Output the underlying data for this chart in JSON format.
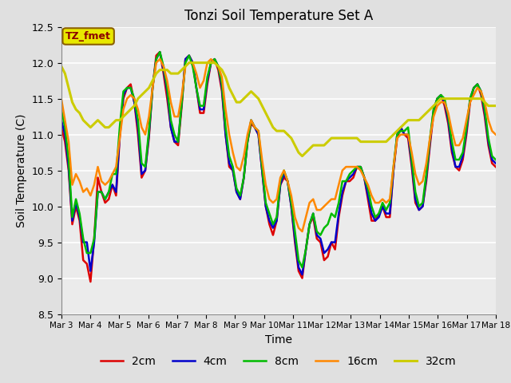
{
  "title": "Tonzi Soil Temperature Set A",
  "xlabel": "Time",
  "ylabel": "Soil Temperature (C)",
  "ylim": [
    8.5,
    12.5
  ],
  "xlim": [
    0,
    15
  ],
  "x_tick_labels": [
    "Mar 3",
    "Mar 4",
    "Mar 5",
    "Mar 6",
    "Mar 7",
    "Mar 8",
    "Mar 9",
    "Mar 10",
    "Mar 11",
    "Mar 12",
    "Mar 13",
    "Mar 14",
    "Mar 15",
    "Mar 16",
    "Mar 17",
    "Mar 18"
  ],
  "background_color": "#e0e0e0",
  "plot_bg_color": "#ebebeb",
  "legend_label": "TZ_fmet",
  "legend_box_facecolor": "#e8e800",
  "legend_text_color": "#8b0000",
  "legend_edge_color": "#8b6000",
  "series_colors": [
    "#dd0000",
    "#0000cc",
    "#00bb00",
    "#ff8800",
    "#cccc00"
  ],
  "series_labels": [
    "2cm",
    "4cm",
    "8cm",
    "16cm",
    "32cm"
  ],
  "series_linewidths": [
    1.8,
    1.8,
    1.8,
    1.8,
    2.2
  ],
  "2cm": [
    11.1,
    10.9,
    10.5,
    9.75,
    10.0,
    9.8,
    9.25,
    9.2,
    8.95,
    9.55,
    10.4,
    10.2,
    10.05,
    10.1,
    10.3,
    10.15,
    10.95,
    11.5,
    11.65,
    11.7,
    11.45,
    11.0,
    10.4,
    10.5,
    10.95,
    11.65,
    12.1,
    12.15,
    11.85,
    11.5,
    11.1,
    10.9,
    10.85,
    11.4,
    12.05,
    12.1,
    12.0,
    11.65,
    11.3,
    11.3,
    11.7,
    12.0,
    12.05,
    11.9,
    11.6,
    11.0,
    10.55,
    10.5,
    10.2,
    10.1,
    10.4,
    10.9,
    11.15,
    11.1,
    11.0,
    10.5,
    10.0,
    9.75,
    9.6,
    9.8,
    10.3,
    10.4,
    10.35,
    10.0,
    9.5,
    9.1,
    9.0,
    9.4,
    9.75,
    9.85,
    9.55,
    9.5,
    9.25,
    9.3,
    9.5,
    9.4,
    9.85,
    10.15,
    10.35,
    10.35,
    10.4,
    10.55,
    10.55,
    10.4,
    10.1,
    9.8,
    9.8,
    9.9,
    10.0,
    9.85,
    9.85,
    10.5,
    10.95,
    11.1,
    11.0,
    10.95,
    10.55,
    10.05,
    9.95,
    10.0,
    10.35,
    10.85,
    11.3,
    11.5,
    11.55,
    11.4,
    11.15,
    10.75,
    10.55,
    10.5,
    10.65,
    11.0,
    11.45,
    11.65,
    11.7,
    11.55,
    11.25,
    10.85,
    10.6,
    10.55
  ],
  "4cm": [
    11.2,
    11.0,
    10.55,
    9.8,
    10.05,
    9.85,
    9.5,
    9.5,
    9.1,
    9.5,
    10.2,
    10.2,
    10.1,
    10.2,
    10.3,
    10.2,
    11.0,
    11.55,
    11.65,
    11.65,
    11.45,
    11.1,
    10.45,
    10.5,
    11.0,
    11.65,
    12.05,
    12.15,
    11.9,
    11.6,
    11.1,
    10.9,
    10.9,
    11.45,
    12.05,
    12.1,
    12.0,
    11.65,
    11.35,
    11.35,
    11.75,
    12.0,
    12.05,
    11.95,
    11.65,
    11.0,
    10.6,
    10.5,
    10.2,
    10.1,
    10.4,
    10.9,
    11.2,
    11.1,
    11.0,
    10.5,
    10.0,
    9.8,
    9.7,
    9.8,
    10.3,
    10.45,
    10.35,
    10.0,
    9.55,
    9.15,
    9.05,
    9.4,
    9.75,
    9.9,
    9.6,
    9.55,
    9.35,
    9.4,
    9.5,
    9.5,
    9.9,
    10.2,
    10.35,
    10.4,
    10.45,
    10.55,
    10.55,
    10.4,
    10.15,
    9.9,
    9.8,
    9.85,
    10.0,
    9.9,
    9.9,
    10.5,
    11.0,
    11.1,
    11.0,
    11.0,
    10.6,
    10.1,
    9.95,
    10.0,
    10.4,
    10.9,
    11.35,
    11.5,
    11.55,
    11.45,
    11.2,
    10.8,
    10.55,
    10.55,
    10.7,
    11.05,
    11.5,
    11.65,
    11.7,
    11.6,
    11.3,
    10.9,
    10.65,
    10.6
  ],
  "8cm": [
    11.35,
    11.1,
    10.65,
    9.85,
    10.1,
    9.9,
    9.55,
    9.35,
    9.35,
    9.55,
    10.2,
    10.2,
    10.1,
    10.2,
    10.45,
    10.45,
    11.1,
    11.6,
    11.65,
    11.65,
    11.5,
    11.2,
    10.6,
    10.55,
    11.05,
    11.65,
    12.05,
    12.15,
    11.95,
    11.65,
    11.2,
    11.0,
    10.9,
    11.45,
    12.0,
    12.1,
    11.95,
    11.65,
    11.4,
    11.4,
    11.8,
    12.0,
    12.05,
    11.95,
    11.7,
    11.1,
    10.7,
    10.55,
    10.25,
    10.15,
    10.4,
    10.9,
    11.2,
    11.1,
    11.05,
    10.55,
    10.05,
    9.9,
    9.75,
    9.85,
    10.35,
    10.5,
    10.35,
    10.05,
    9.65,
    9.25,
    9.15,
    9.4,
    9.75,
    9.9,
    9.65,
    9.6,
    9.7,
    9.75,
    9.9,
    9.85,
    10.05,
    10.35,
    10.35,
    10.45,
    10.5,
    10.55,
    10.55,
    10.4,
    10.25,
    10.0,
    9.85,
    9.9,
    10.05,
    9.95,
    10.05,
    10.55,
    11.0,
    11.05,
    11.05,
    11.1,
    10.65,
    10.2,
    10.0,
    10.05,
    10.45,
    10.95,
    11.35,
    11.5,
    11.55,
    11.5,
    11.25,
    10.9,
    10.65,
    10.65,
    10.75,
    11.1,
    11.5,
    11.65,
    11.7,
    11.6,
    11.35,
    10.95,
    10.7,
    10.65
  ],
  "16cm": [
    11.5,
    11.2,
    10.9,
    10.3,
    10.45,
    10.35,
    10.2,
    10.25,
    10.15,
    10.3,
    10.55,
    10.35,
    10.3,
    10.35,
    10.45,
    10.55,
    10.95,
    11.35,
    11.5,
    11.55,
    11.5,
    11.35,
    11.1,
    11.0,
    11.25,
    11.65,
    12.0,
    12.05,
    11.95,
    11.75,
    11.45,
    11.25,
    11.25,
    11.55,
    11.95,
    12.0,
    12.0,
    11.85,
    11.65,
    11.75,
    12.0,
    12.05,
    12.0,
    11.95,
    11.8,
    11.35,
    11.0,
    10.75,
    10.55,
    10.5,
    10.7,
    11.0,
    11.2,
    11.1,
    11.05,
    10.65,
    10.3,
    10.1,
    10.05,
    10.1,
    10.4,
    10.5,
    10.35,
    10.15,
    9.85,
    9.7,
    9.65,
    9.85,
    10.05,
    10.1,
    9.95,
    9.95,
    10.0,
    10.05,
    10.1,
    10.1,
    10.3,
    10.5,
    10.55,
    10.55,
    10.55,
    10.55,
    10.5,
    10.4,
    10.3,
    10.15,
    10.05,
    10.05,
    10.1,
    10.05,
    10.1,
    10.55,
    10.95,
    11.0,
    11.0,
    11.0,
    10.75,
    10.45,
    10.3,
    10.35,
    10.6,
    10.95,
    11.25,
    11.4,
    11.45,
    11.45,
    11.3,
    11.05,
    10.85,
    10.85,
    10.95,
    11.2,
    11.45,
    11.55,
    11.65,
    11.6,
    11.45,
    11.2,
    11.05,
    11.0
  ],
  "32cm": [
    11.95,
    11.85,
    11.65,
    11.45,
    11.35,
    11.3,
    11.2,
    11.15,
    11.1,
    11.15,
    11.2,
    11.15,
    11.1,
    11.1,
    11.15,
    11.2,
    11.2,
    11.25,
    11.3,
    11.35,
    11.4,
    11.5,
    11.55,
    11.6,
    11.65,
    11.75,
    11.85,
    11.9,
    11.9,
    11.9,
    11.85,
    11.85,
    11.85,
    11.9,
    11.95,
    12.0,
    12.0,
    12.0,
    12.0,
    12.0,
    12.0,
    12.0,
    12.0,
    11.95,
    11.9,
    11.8,
    11.65,
    11.55,
    11.45,
    11.45,
    11.5,
    11.55,
    11.6,
    11.55,
    11.5,
    11.4,
    11.3,
    11.2,
    11.1,
    11.05,
    11.05,
    11.05,
    11.0,
    10.95,
    10.85,
    10.75,
    10.7,
    10.75,
    10.8,
    10.85,
    10.85,
    10.85,
    10.85,
    10.9,
    10.95,
    10.95,
    10.95,
    10.95,
    10.95,
    10.95,
    10.95,
    10.95,
    10.9,
    10.9,
    10.9,
    10.9,
    10.9,
    10.9,
    10.9,
    10.9,
    10.95,
    11.0,
    11.05,
    11.1,
    11.15,
    11.2,
    11.2,
    11.2,
    11.2,
    11.25,
    11.3,
    11.35,
    11.4,
    11.45,
    11.5,
    11.5,
    11.5,
    11.5,
    11.5,
    11.5,
    11.5,
    11.5,
    11.5,
    11.5,
    11.5,
    11.5,
    11.45,
    11.4,
    11.4,
    11.4
  ]
}
